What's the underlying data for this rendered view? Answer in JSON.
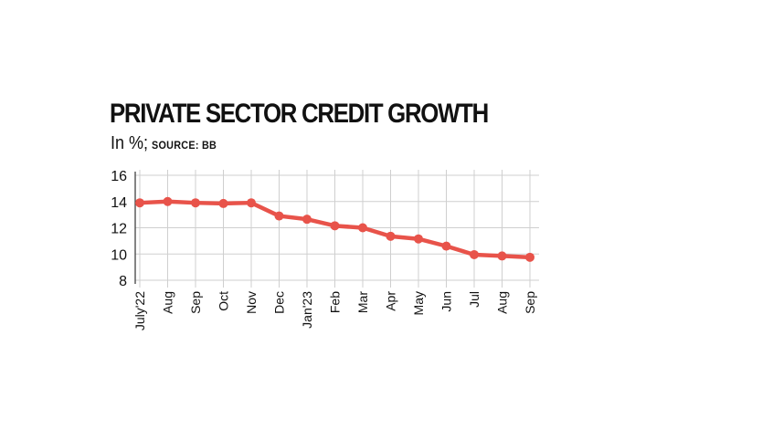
{
  "title": "PRIVATE SECTOR CREDIT GROWTH",
  "subtitle_unit": "In %;",
  "subtitle_source": "SOURCE: BB",
  "colors": {
    "line": "#e8534a",
    "grid": "#cfcfcf",
    "axis": "#333333"
  },
  "chart_data": {
    "type": "line",
    "categories": [
      "July'22",
      "Aug",
      "Sep",
      "Oct",
      "Nov",
      "Dec",
      "Jan'23",
      "Feb",
      "Mar",
      "Apr",
      "May",
      "Jun",
      "Jul",
      "Aug",
      "Sep"
    ],
    "series": [
      {
        "values": [
          13.9,
          14.0,
          13.9,
          13.85,
          13.9,
          12.9,
          12.65,
          12.15,
          12.0,
          11.35,
          11.15,
          10.6,
          9.95,
          9.85,
          9.75
        ]
      }
    ],
    "ylim": [
      8,
      16
    ],
    "yticks": [
      8,
      10,
      12,
      14,
      16
    ],
    "grid": true,
    "legend": "none"
  }
}
